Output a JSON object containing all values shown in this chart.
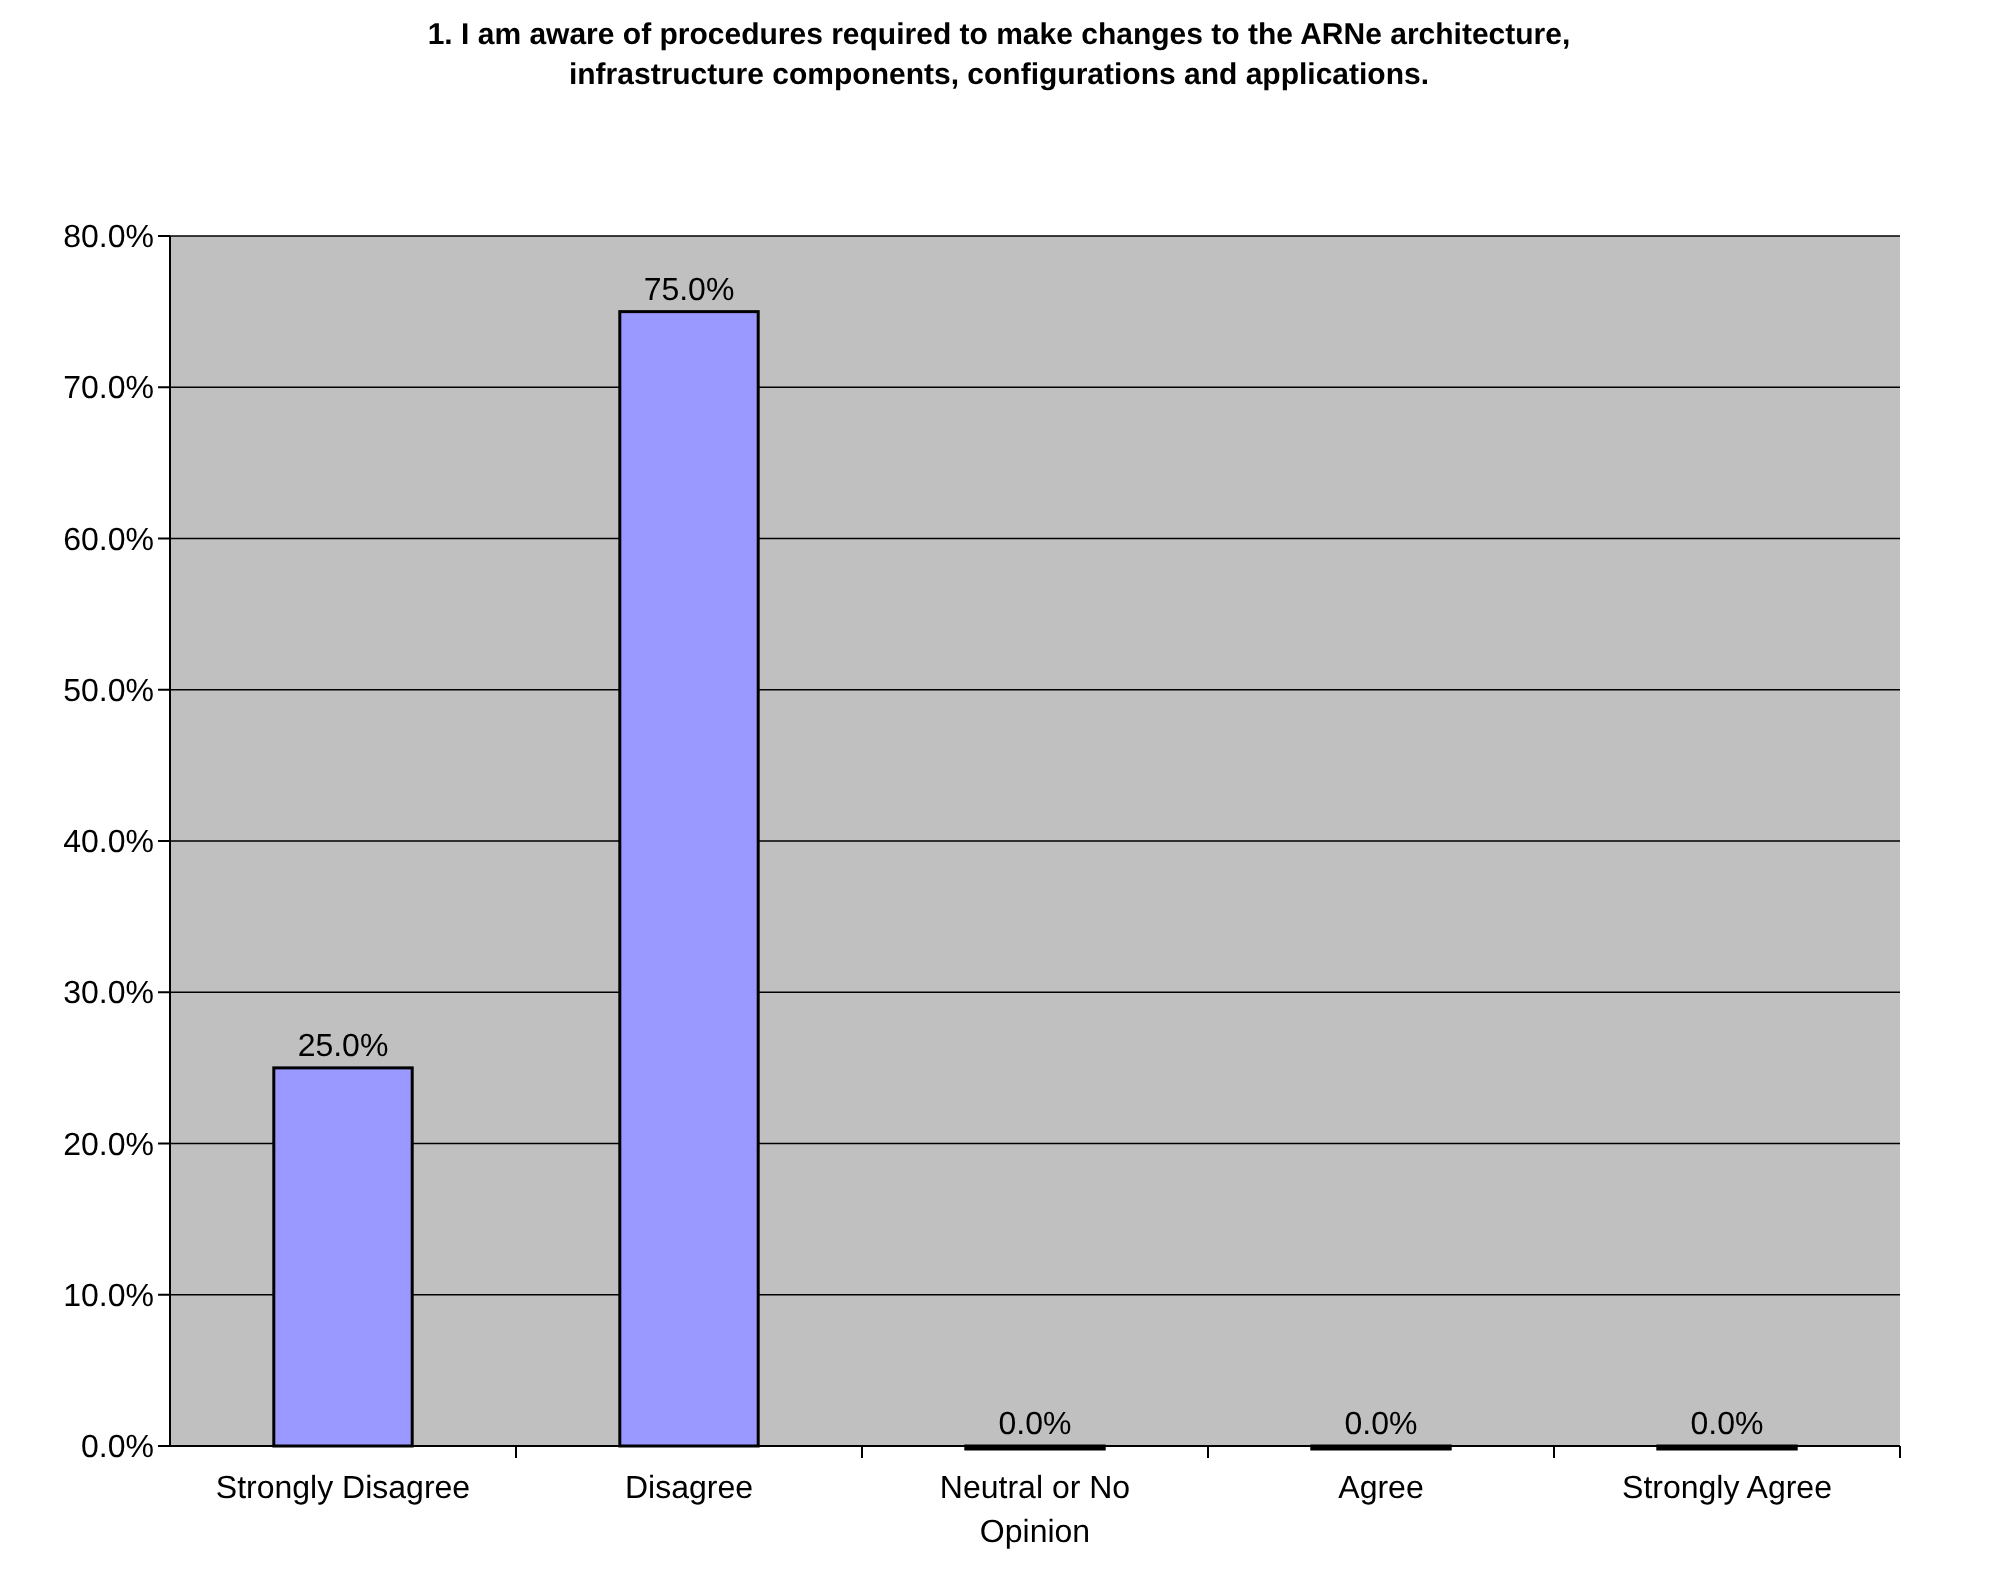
{
  "chart_data": {
    "type": "bar",
    "title": "1. I am aware of procedures required to make changes to  the ARNe architecture, infrastructure components, configurations and applications.",
    "categories": [
      "Strongly Disagree",
      "Disagree",
      "Neutral or No Opinion",
      "Agree",
      "Strongly Agree"
    ],
    "values": [
      25,
      75,
      0,
      0,
      0
    ],
    "color": "#9999ff",
    "value_labels": [
      "25.0%",
      "75.0%",
      "0.0%",
      "0.0%",
      "0.0%"
    ],
    "ylim": [
      0,
      80
    ],
    "yticks": [
      {
        "value": 0,
        "label": "0.0%"
      },
      {
        "value": 10,
        "label": "10.0%"
      },
      {
        "value": 20,
        "label": "20.0%"
      },
      {
        "value": 30,
        "label": "30.0%"
      },
      {
        "value": 40,
        "label": "40.0%"
      },
      {
        "value": 50,
        "label": "50.0%"
      },
      {
        "value": 60,
        "label": "60.0%"
      },
      {
        "value": 70,
        "label": "70.0%"
      },
      {
        "value": 80,
        "label": "80.0%"
      }
    ],
    "grid": "y"
  }
}
